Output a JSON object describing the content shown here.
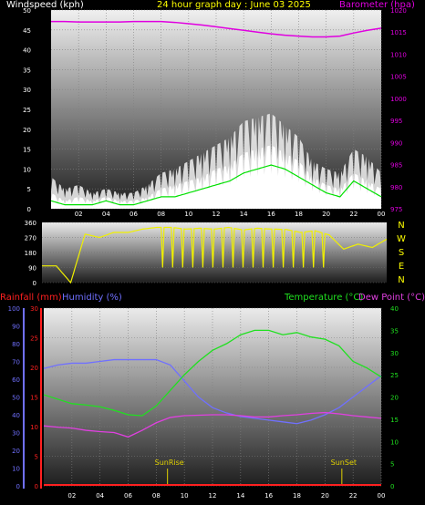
{
  "colors": {
    "wind": "#ffffff",
    "gust_fill": "#e8e8e8",
    "wind_avg": "#00e000",
    "barometer": "#e000e0",
    "direction": "#f0f000",
    "rain": "#ff2020",
    "humidity": "#7070ff",
    "temperature": "#20e020",
    "dewpoint": "#e040e0",
    "sun": "#e0d000",
    "white_text": "#ffffff",
    "yellow_text": "#ffff00"
  },
  "header": {
    "windspeed_label": "Windspeed (kph)",
    "title": "24 hour graph day : June 03 2025",
    "barometer_label": "Barometer (hpa)"
  },
  "legend": {
    "rainfall": "Rainfall (mm)",
    "humidity": "Humidity (%)",
    "temperature": "Temperature (°C)",
    "dewpoint": "Dew Point (°C)"
  },
  "chart_data": [
    {
      "type": "line",
      "title": "24 hour graph day : June 03 2025",
      "ylabel": "Windspeed (kph)",
      "y2label": "Barometer (hpa)",
      "x": [
        "00",
        "01",
        "02",
        "03",
        "04",
        "05",
        "06",
        "07",
        "08",
        "09",
        "10",
        "11",
        "12",
        "13",
        "14",
        "15",
        "16",
        "17",
        "18",
        "19",
        "20",
        "21",
        "22",
        "23",
        "24"
      ],
      "x_tick_labels": [
        "02",
        "04",
        "06",
        "08",
        "10",
        "12",
        "14",
        "16",
        "18",
        "20",
        "22",
        "00"
      ],
      "ylim": [
        0,
        50
      ],
      "y_ticks": [
        0,
        5,
        10,
        15,
        20,
        25,
        30,
        35,
        40,
        45,
        50
      ],
      "y2lim": [
        975,
        1020
      ],
      "y2_ticks": [
        975,
        980,
        985,
        990,
        995,
        1000,
        1005,
        1010,
        1015,
        1020
      ],
      "series": [
        {
          "name": "wind",
          "axis": "left",
          "values": [
            4,
            2,
            3,
            2,
            3,
            2,
            2,
            3,
            5,
            6,
            7,
            8,
            10,
            11,
            14,
            15,
            16,
            14,
            12,
            8,
            6,
            5,
            9,
            7,
            5
          ]
        },
        {
          "name": "gust",
          "axis": "left",
          "values": [
            8,
            5,
            6,
            4,
            5,
            4,
            4,
            6,
            9,
            10,
            12,
            14,
            16,
            18,
            22,
            23,
            24,
            21,
            18,
            12,
            10,
            9,
            15,
            13,
            9
          ]
        },
        {
          "name": "wind_avg",
          "axis": "left",
          "values": [
            2,
            1,
            1,
            1,
            2,
            1,
            1,
            2,
            3,
            3,
            4,
            5,
            6,
            7,
            9,
            10,
            11,
            10,
            8,
            6,
            4,
            3,
            7,
            5,
            3
          ]
        },
        {
          "name": "barometer",
          "axis": "right",
          "values": [
            1017.4,
            1017.4,
            1017.3,
            1017.3,
            1017.3,
            1017.3,
            1017.4,
            1017.4,
            1017.4,
            1017.2,
            1016.9,
            1016.6,
            1016.2,
            1015.8,
            1015.4,
            1015.0,
            1014.6,
            1014.3,
            1014.1,
            1013.9,
            1013.9,
            1014.1,
            1014.8,
            1015.4,
            1015.9
          ]
        }
      ]
    },
    {
      "type": "line",
      "ylabel": "Wind direction",
      "x": [
        "00",
        "01",
        "02",
        "03",
        "04",
        "05",
        "06",
        "07",
        "08",
        "09",
        "10",
        "11",
        "12",
        "13",
        "14",
        "15",
        "16",
        "17",
        "18",
        "19",
        "20",
        "21",
        "22",
        "23",
        "24"
      ],
      "ylim": [
        0,
        360
      ],
      "y_ticks": [
        0,
        90,
        180,
        270,
        360
      ],
      "compass_labels": [
        "N",
        "W",
        "S",
        "E",
        "N"
      ],
      "series": [
        {
          "name": "direction",
          "values": [
            100,
            100,
            0,
            290,
            270,
            300,
            300,
            320,
            330,
            330,
            320,
            325,
            320,
            330,
            315,
            325,
            320,
            318,
            300,
            310,
            285,
            200,
            230,
            210,
            260
          ]
        }
      ]
    },
    {
      "type": "line",
      "ylabel": "Humidity (%)",
      "y2label": "Temperature (°C)",
      "x": [
        "00",
        "01",
        "02",
        "03",
        "04",
        "05",
        "06",
        "07",
        "08",
        "09",
        "10",
        "11",
        "12",
        "13",
        "14",
        "15",
        "16",
        "17",
        "18",
        "19",
        "20",
        "21",
        "22",
        "23",
        "24"
      ],
      "x_tick_labels": [
        "02",
        "04",
        "06",
        "08",
        "10",
        "12",
        "14",
        "16",
        "18",
        "20",
        "22",
        "00"
      ],
      "rain_ylim": [
        0,
        30
      ],
      "rain_ticks": [
        0,
        5,
        10,
        15,
        20,
        25,
        30
      ],
      "humidity_ylim": [
        0,
        100
      ],
      "humidity_ticks": [
        0,
        10,
        20,
        30,
        40,
        50,
        60,
        70,
        80,
        90,
        100
      ],
      "temp_ylim": [
        0,
        40
      ],
      "temp_ticks": [
        0,
        5,
        10,
        15,
        20,
        25,
        30,
        35,
        40
      ],
      "annotations": {
        "sunrise": "SunRise",
        "sunset": "SunSet",
        "sunrise_x": 8.8,
        "sunset_x": 21.2
      },
      "series": [
        {
          "name": "rainfall",
          "axis": "rain",
          "values": [
            0,
            0,
            0,
            0,
            0,
            0,
            0,
            0,
            0,
            0,
            0,
            0,
            0,
            0,
            0,
            0,
            0,
            0,
            0,
            0,
            0,
            0,
            0,
            0,
            0
          ]
        },
        {
          "name": "humidity",
          "axis": "humidity",
          "values": [
            66,
            68,
            69,
            69,
            70,
            71,
            71,
            71,
            71,
            68,
            59,
            50,
            44,
            41,
            39,
            38,
            37,
            36,
            35,
            37,
            40,
            44,
            50,
            56,
            62
          ]
        },
        {
          "name": "temperature",
          "axis": "temp",
          "values": [
            20.5,
            19.5,
            18.5,
            18.2,
            17.8,
            17,
            16,
            15.8,
            18,
            21.5,
            25,
            28,
            30.5,
            32,
            34,
            35,
            35,
            34,
            34.5,
            33.5,
            33,
            31.5,
            28,
            26.5,
            24.5
          ]
        },
        {
          "name": "dewpoint",
          "axis": "temp",
          "values": [
            13.5,
            13.2,
            13,
            12.5,
            12.2,
            12,
            11,
            12.5,
            14.2,
            15.4,
            15.8,
            15.9,
            16,
            16,
            15.8,
            15.5,
            15.5,
            15.8,
            16,
            16.3,
            16.5,
            16.2,
            15.8,
            15.5,
            15.2
          ]
        }
      ]
    }
  ]
}
